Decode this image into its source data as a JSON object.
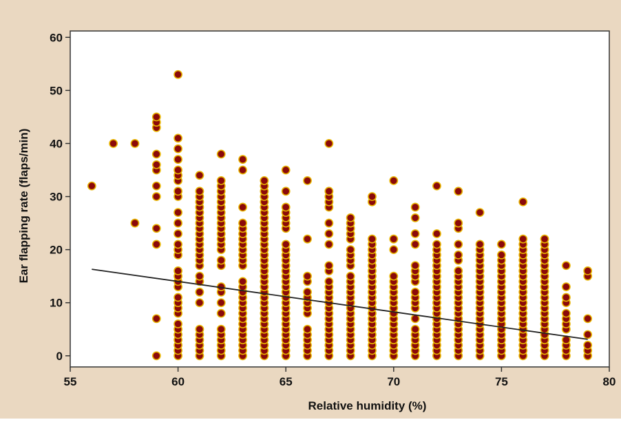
{
  "chart_data": {
    "type": "scatter",
    "title": "",
    "xlabel": "Relative humidity (%)",
    "ylabel": "Ear flapping rate (flaps/min)",
    "xlim": [
      55,
      80
    ],
    "ylim": [
      0,
      60
    ],
    "xticks": [
      55,
      60,
      65,
      70,
      75,
      80
    ],
    "yticks": [
      0,
      10,
      20,
      30,
      40,
      50,
      60
    ],
    "xtick_labels": [
      "55",
      "60",
      "65",
      "70",
      "75",
      "80"
    ],
    "ytick_labels": [
      "0",
      "10",
      "20",
      "30",
      "40",
      "50",
      "60"
    ],
    "grid": false,
    "legend": "none",
    "colors": {
      "frame_background": "#ead8c1",
      "plot_background": "#ffffff",
      "marker_fill": "#8b0a0a",
      "marker_edge": "#e8b400",
      "fit_line": "#222222",
      "axis": "#333333",
      "text": "#111111"
    },
    "points": [
      {
        "x": 56,
        "y": [
          32
        ]
      },
      {
        "x": 57,
        "y": [
          40
        ]
      },
      {
        "x": 58,
        "y": [
          25,
          40
        ]
      },
      {
        "x": 59,
        "y": [
          0,
          7,
          21,
          24,
          30,
          32,
          35,
          36,
          38,
          43,
          44,
          45
        ]
      },
      {
        "x": 60,
        "y": [
          0,
          1,
          2,
          3,
          4,
          5,
          6,
          8,
          9,
          10,
          11,
          13,
          14,
          15,
          16,
          19,
          20,
          21,
          23,
          25,
          27,
          30,
          31,
          33,
          34,
          35,
          37,
          39,
          41,
          53
        ]
      },
      {
        "x": 61,
        "y": [
          0,
          1,
          2,
          3,
          4,
          5,
          10,
          12,
          14,
          15,
          17,
          18,
          19,
          20,
          21,
          22,
          23,
          24,
          25,
          26,
          27,
          28,
          29,
          30,
          31,
          34
        ]
      },
      {
        "x": 62,
        "y": [
          0,
          1,
          2,
          3,
          4,
          5,
          8,
          10,
          12,
          13,
          17,
          18,
          20,
          21,
          22,
          23,
          24,
          25,
          26,
          27,
          28,
          29,
          30,
          31,
          32,
          33,
          38
        ]
      },
      {
        "x": 63,
        "y": [
          0,
          1,
          2,
          3,
          4,
          5,
          6,
          7,
          8,
          9,
          10,
          11,
          12,
          13,
          14,
          17,
          18,
          19,
          20,
          21,
          22,
          23,
          24,
          25,
          28,
          35,
          37
        ]
      },
      {
        "x": 64,
        "y": [
          0,
          1,
          2,
          3,
          4,
          5,
          6,
          7,
          8,
          9,
          10,
          11,
          12,
          13,
          14,
          15,
          16,
          17,
          18,
          19,
          20,
          21,
          22,
          23,
          24,
          25,
          26,
          27,
          28,
          29,
          30,
          31,
          32,
          33
        ]
      },
      {
        "x": 65,
        "y": [
          0,
          1,
          2,
          3,
          4,
          5,
          6,
          7,
          8,
          9,
          10,
          11,
          12,
          13,
          14,
          15,
          16,
          17,
          18,
          19,
          20,
          21,
          24,
          25,
          26,
          27,
          28,
          31,
          35
        ]
      },
      {
        "x": 66,
        "y": [
          0,
          1,
          2,
          3,
          4,
          5,
          8,
          9,
          10,
          11,
          12,
          14,
          15,
          22,
          33
        ]
      },
      {
        "x": 67,
        "y": [
          0,
          1,
          2,
          3,
          4,
          5,
          6,
          7,
          8,
          9,
          10,
          11,
          12,
          13,
          14,
          16,
          17,
          21,
          23,
          25,
          28,
          29,
          30,
          31,
          40
        ]
      },
      {
        "x": 68,
        "y": [
          0,
          1,
          2,
          3,
          4,
          5,
          6,
          7,
          8,
          9,
          10,
          11,
          12,
          13,
          14,
          15,
          17,
          18,
          19,
          20,
          22,
          23,
          24,
          25,
          26
        ]
      },
      {
        "x": 69,
        "y": [
          0,
          1,
          2,
          3,
          4,
          5,
          6,
          7,
          8,
          9,
          10,
          11,
          12,
          13,
          14,
          15,
          16,
          17,
          18,
          19,
          20,
          21,
          22,
          29,
          30
        ]
      },
      {
        "x": 70,
        "y": [
          0,
          1,
          2,
          3,
          4,
          5,
          6,
          7,
          8,
          9,
          10,
          11,
          12,
          13,
          14,
          15,
          20,
          22,
          33
        ]
      },
      {
        "x": 71,
        "y": [
          0,
          1,
          2,
          3,
          4,
          5,
          7,
          9,
          10,
          11,
          12,
          14,
          15,
          16,
          17,
          21,
          23,
          26,
          28
        ]
      },
      {
        "x": 72,
        "y": [
          0,
          1,
          2,
          3,
          4,
          5,
          6,
          7,
          8,
          9,
          10,
          11,
          12,
          13,
          14,
          15,
          16,
          17,
          18,
          19,
          20,
          21,
          23,
          32
        ]
      },
      {
        "x": 73,
        "y": [
          0,
          1,
          2,
          3,
          4,
          5,
          6,
          7,
          8,
          9,
          10,
          11,
          12,
          13,
          14,
          15,
          16,
          18,
          19,
          21,
          24,
          25,
          31
        ]
      },
      {
        "x": 74,
        "y": [
          0,
          1,
          2,
          3,
          4,
          5,
          6,
          7,
          8,
          9,
          10,
          11,
          12,
          13,
          14,
          15,
          16,
          17,
          18,
          19,
          20,
          21,
          27
        ]
      },
      {
        "x": 75,
        "y": [
          0,
          1,
          2,
          3,
          4,
          5,
          6,
          7,
          8,
          9,
          10,
          11,
          12,
          13,
          14,
          15,
          16,
          17,
          18,
          19,
          21
        ]
      },
      {
        "x": 76,
        "y": [
          0,
          1,
          2,
          3,
          4,
          5,
          6,
          7,
          8,
          9,
          10,
          11,
          12,
          13,
          14,
          15,
          16,
          17,
          18,
          19,
          20,
          21,
          22,
          29
        ]
      },
      {
        "x": 77,
        "y": [
          0,
          1,
          2,
          3,
          4,
          5,
          6,
          7,
          8,
          9,
          10,
          11,
          12,
          13,
          14,
          15,
          16,
          17,
          18,
          19,
          20,
          21,
          22
        ]
      },
      {
        "x": 78,
        "y": [
          0,
          1,
          2,
          3,
          5,
          6,
          7,
          8,
          10,
          11,
          13,
          17
        ]
      },
      {
        "x": 79,
        "y": [
          0,
          1,
          2,
          4,
          7,
          15,
          16
        ]
      }
    ],
    "fit_line": {
      "x": [
        56,
        79
      ],
      "y": [
        16.3,
        3.1
      ]
    }
  }
}
